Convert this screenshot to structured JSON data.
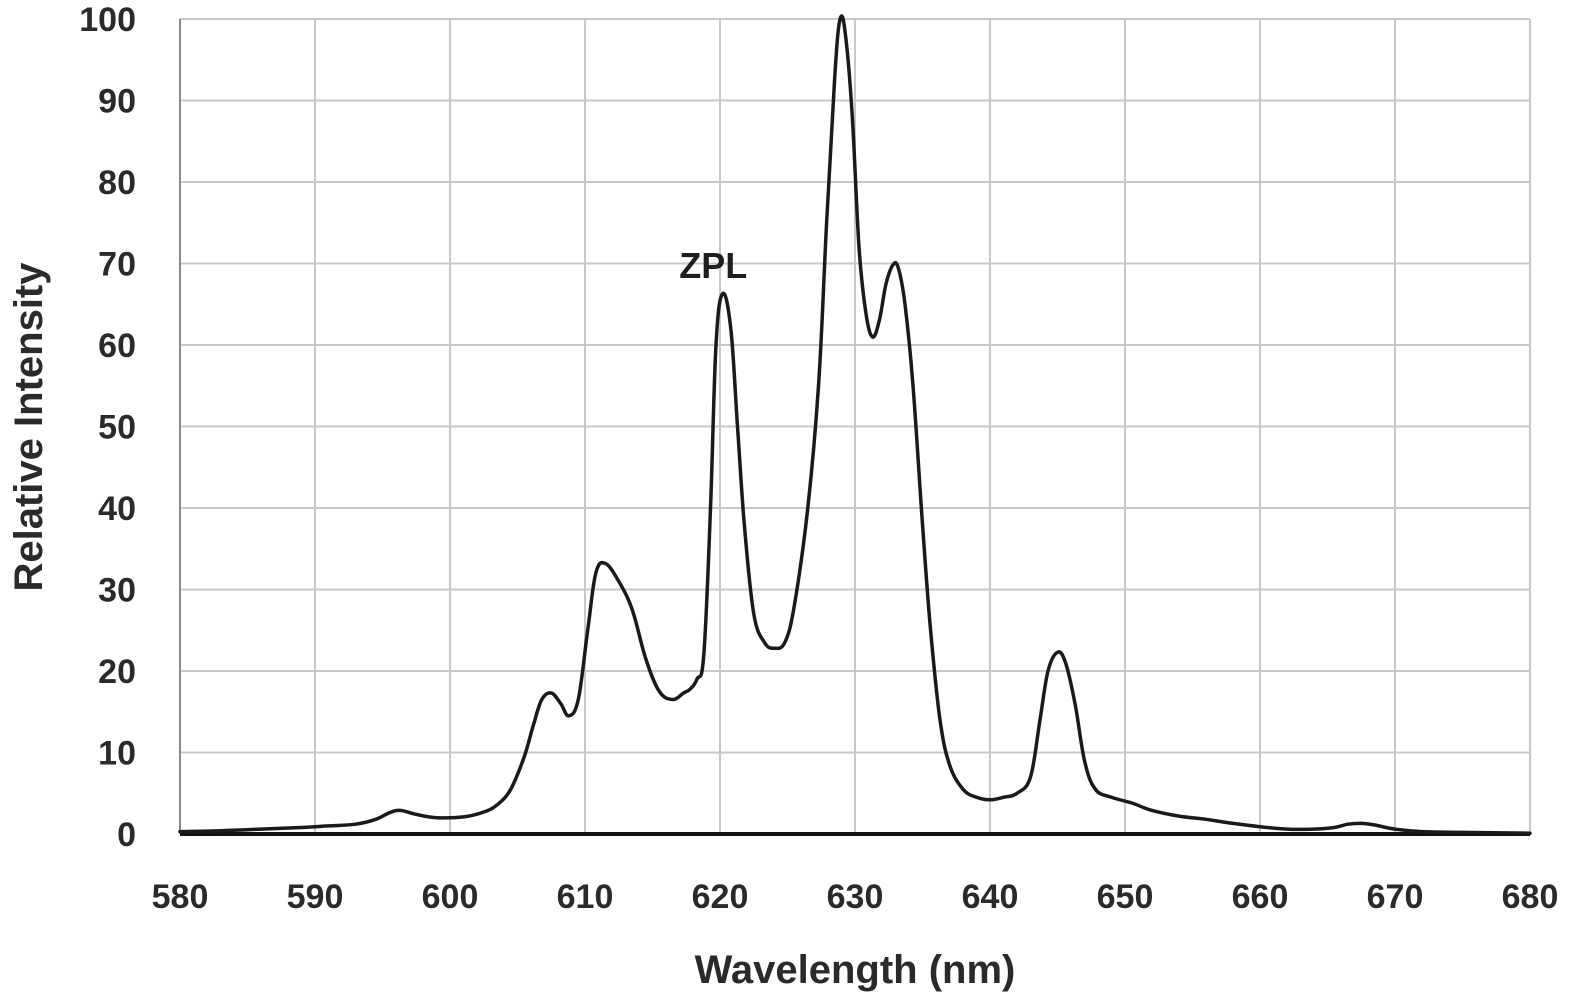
{
  "chart_data": {
    "type": "line",
    "title": "",
    "xlabel": "Wavelength (nm)",
    "ylabel": "Relative Intensity",
    "xlim": [
      580,
      680
    ],
    "ylim": [
      0,
      100
    ],
    "x_ticks": [
      580,
      590,
      600,
      610,
      620,
      630,
      640,
      650,
      660,
      670,
      680
    ],
    "y_ticks": [
      0,
      10,
      20,
      30,
      40,
      50,
      60,
      70,
      80,
      90,
      100
    ],
    "grid": true,
    "legend": "none",
    "line_color": "#1a1a1a",
    "grid_color": "#c8c8c8",
    "annotations": [
      {
        "text": "ZPL",
        "x": 619.5,
        "y": 66
      }
    ],
    "series": [
      {
        "x": [
          580,
          583,
          586,
          589,
          591,
          593,
          594.5,
          595.5,
          596.3,
          597.5,
          599,
          601,
          602.5,
          603.5,
          604.5,
          605.5,
          606.2,
          606.8,
          607.5,
          608.2,
          608.8,
          609.5,
          610.2,
          610.8,
          611.5,
          612.5,
          613.5,
          614.5,
          615.5,
          616.5,
          617.3,
          617.8,
          618.3,
          618.8,
          619.3,
          619.7,
          620.2,
          620.8,
          621.3,
          621.8,
          622.5,
          623.3,
          624.0,
          624.8,
          625.5,
          626.5,
          627.3,
          627.9,
          628.5,
          628.9,
          629.3,
          629.8,
          630.3,
          630.8,
          631.3,
          631.8,
          632.3,
          632.8,
          633.2,
          633.7,
          634.3,
          635.0,
          635.6,
          636.3,
          637.0,
          638.0,
          639.0,
          640.0,
          641.0,
          642.0,
          643.0,
          643.7,
          644.3,
          645.0,
          645.6,
          646.3,
          647.0,
          647.8,
          649.0,
          650.5,
          652.0,
          654.0,
          656.0,
          658.0,
          660.0,
          662.0,
          664.0,
          665.5,
          666.5,
          667.5,
          668.5,
          670.0,
          672.0,
          675.0,
          680.0
        ],
        "values": [
          0.3,
          0.4,
          0.6,
          0.8,
          1.0,
          1.2,
          1.8,
          2.6,
          2.9,
          2.4,
          2.0,
          2.1,
          2.7,
          3.6,
          5.5,
          9.5,
          13.5,
          16.5,
          17.3,
          16.0,
          14.5,
          16.5,
          25,
          32,
          33.2,
          31,
          27.5,
          21.5,
          17.5,
          16.5,
          17.3,
          17.8,
          19,
          22,
          40,
          60,
          66.3,
          62,
          50,
          38,
          27,
          23.5,
          22.8,
          23.5,
          28,
          40,
          55,
          75,
          93,
          100,
          98,
          88,
          72,
          64,
          61,
          63,
          67.5,
          69.8,
          69.5,
          65,
          55,
          38,
          25,
          14,
          8.5,
          5.5,
          4.5,
          4.2,
          4.5,
          5.0,
          7.0,
          14,
          20,
          22.3,
          21,
          16,
          9,
          5.5,
          4.5,
          3.8,
          2.9,
          2.2,
          1.8,
          1.3,
          0.9,
          0.6,
          0.6,
          0.8,
          1.2,
          1.3,
          1.1,
          0.6,
          0.3,
          0.2,
          0.1
        ]
      }
    ]
  }
}
